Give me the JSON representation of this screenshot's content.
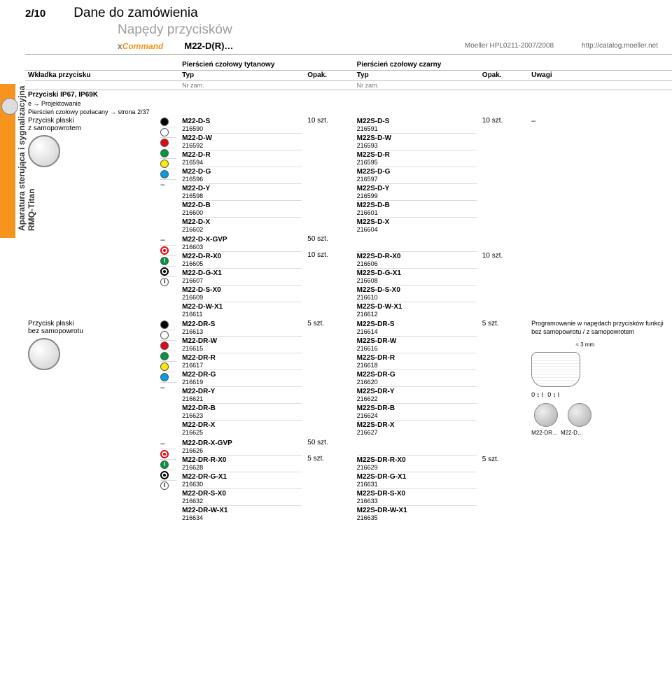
{
  "page_number": "2/10",
  "title_line1": "Dane do zamówienia",
  "title_line2": "Napędy przycisków",
  "brand_prefix": "x",
  "brand_name": "Command",
  "model": "M22-D(R)…",
  "header_right1": "Moeller HPL0211-2007/2008",
  "header_right2": "http://catalog.moeller.net",
  "rail_line1": "Aparatura sterująca i sygnalizacyjna",
  "rail_line2": "RMQ-Titan",
  "columns": {
    "wkladka": "Wkładka przycisku",
    "ring_tyt": "Pierścień czołowy tytanowy",
    "ring_black": "Pierścień czołowy czarny",
    "typ": "Typ",
    "nrzam": "Nr zam.",
    "opak": "Opak.",
    "uwagi": "Uwagi"
  },
  "group_header": "Przyciski IP67, IP69K",
  "design_note": "e → Projektowanie",
  "ring_gilt_note": "Pierścień czołowy pozłacany → strona 2/37",
  "section1": {
    "label": "Przycisk płaski\nz samopowrotem",
    "opak1": "10 szt.",
    "opak2": "10 szt.",
    "uwagi": "–",
    "rows": [
      {
        "swatch": "sw-black",
        "t1": "M22-D-S",
        "n1": "216590",
        "t2": "M22S-D-S",
        "n2": "216591"
      },
      {
        "swatch": "sw-white",
        "t1": "M22-D-W",
        "n1": "216592",
        "t2": "M22S-D-W",
        "n2": "216593"
      },
      {
        "swatch": "sw-red",
        "t1": "M22-D-R",
        "n1": "216594",
        "t2": "M22S-D-R",
        "n2": "216595"
      },
      {
        "swatch": "sw-green",
        "t1": "M22-D-G",
        "n1": "216596",
        "t2": "M22S-D-G",
        "n2": "216597"
      },
      {
        "swatch": "sw-yellow",
        "t1": "M22-D-Y",
        "n1": "216598",
        "t2": "M22S-D-Y",
        "n2": "216599"
      },
      {
        "swatch": "sw-blue",
        "t1": "M22-D-B",
        "n1": "216600",
        "t2": "M22S-D-B",
        "n2": "216601"
      },
      {
        "swatch": "sw-none",
        "dash": "–",
        "t1": "M22-D-X",
        "n1": "216602",
        "t2": "M22S-D-X",
        "n2": "216604"
      }
    ]
  },
  "section2": {
    "opak1a": "50 szt.",
    "opak1b": "10 szt.",
    "opak2": "10 szt.",
    "rows": [
      {
        "swatch": "sw-none",
        "dash": "–",
        "t1": "M22-D-X-GVP",
        "n1": "216603",
        "t2": "",
        "n2": ""
      },
      {
        "swatch": "sw-ring-red",
        "t1": "M22-D-R-X0",
        "n1": "216605",
        "t2": "M22S-D-R-X0",
        "n2": "216606"
      },
      {
        "swatch": "sw-i-green",
        "glyph": "I",
        "t1": "M22-D-G-X1",
        "n1": "216607",
        "t2": "M22S-D-G-X1",
        "n2": "216608"
      },
      {
        "swatch": "sw-dot-black",
        "t1": "M22-D-S-X0",
        "n1": "216609",
        "t2": "M22S-D-S-X0",
        "n2": "216610"
      },
      {
        "swatch": "sw-i-white",
        "glyph": "I",
        "t1": "M22-D-W-X1",
        "n1": "216611",
        "t2": "M22S-D-W-X1",
        "n2": "216612"
      }
    ]
  },
  "section3": {
    "label": "Przycisk płaski\nbez samopowrotu",
    "opak1": "5 szt.",
    "opak2": "5 szt.",
    "uwagi": "Programowanie w napędach przycisków funkcji bez samopowrotu / z samopowrotem",
    "dim_label": "≈ 3 mm",
    "rows": [
      {
        "swatch": "sw-black",
        "t1": "M22-DR-S",
        "n1": "216613",
        "t2": "M22S-DR-S",
        "n2": "216614"
      },
      {
        "swatch": "sw-white",
        "t1": "M22-DR-W",
        "n1": "216615",
        "t2": "M22S-DR-W",
        "n2": "216616"
      },
      {
        "swatch": "sw-red",
        "t1": "M22-DR-R",
        "n1": "216617",
        "t2": "M22S-DR-R",
        "n2": "216618"
      },
      {
        "swatch": "sw-green",
        "t1": "M22-DR-G",
        "n1": "216619",
        "t2": "M22S-DR-G",
        "n2": "216620"
      },
      {
        "swatch": "sw-yellow",
        "t1": "M22-DR-Y",
        "n1": "216621",
        "t2": "M22S-DR-Y",
        "n2": "216622"
      },
      {
        "swatch": "sw-blue",
        "t1": "M22-DR-B",
        "n1": "216623",
        "t2": "M22S-DR-B",
        "n2": "216624"
      },
      {
        "swatch": "sw-none",
        "dash": "–",
        "t1": "M22-DR-X",
        "n1": "216625",
        "t2": "M22S-DR-X",
        "n2": "216627"
      }
    ],
    "label_dr": "M22-DR…",
    "label_d": "M22-D…"
  },
  "section4": {
    "opak1a": "50 szt.",
    "opak1b": "5 szt.",
    "opak2": "5 szt.",
    "rows": [
      {
        "swatch": "sw-none",
        "dash": "–",
        "t1": "M22-DR-X-GVP",
        "n1": "216626",
        "t2": "",
        "n2": ""
      },
      {
        "swatch": "sw-ring-red",
        "t1": "M22-DR-R-X0",
        "n1": "216628",
        "t2": "M22S-DR-R-X0",
        "n2": "216629"
      },
      {
        "swatch": "sw-i-green",
        "glyph": "I",
        "t1": "M22-DR-G-X1",
        "n1": "216630",
        "t2": "M22S-DR-G-X1",
        "n2": "216631"
      },
      {
        "swatch": "sw-dot-black",
        "t1": "M22-DR-S-X0",
        "n1": "216632",
        "t2": "M22S-DR-S-X0",
        "n2": "216633"
      },
      {
        "swatch": "sw-i-white",
        "glyph": "I",
        "t1": "M22-DR-W-X1",
        "n1": "216634",
        "t2": "M22S-DR-W-X1",
        "n2": "216635"
      }
    ]
  }
}
